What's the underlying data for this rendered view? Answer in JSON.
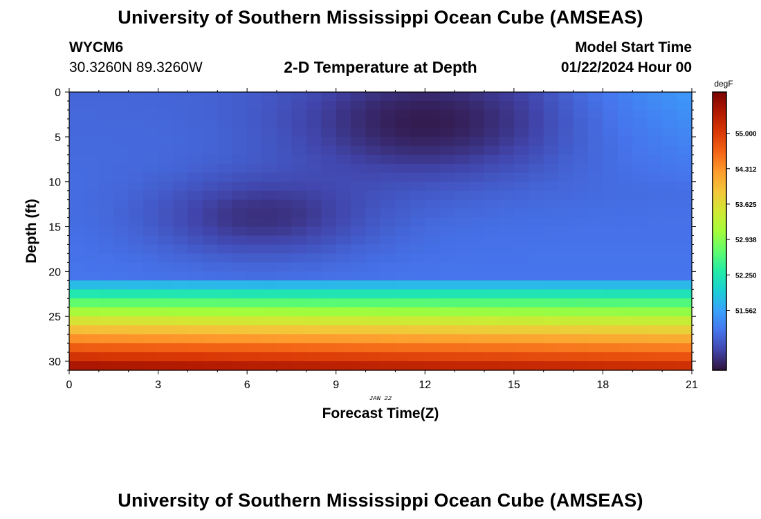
{
  "header": {
    "title": "University of Southern Mississippi Ocean Cube (AMSEAS)",
    "station_id": "WYCM6",
    "coordinates": "30.3260N  89.3260W",
    "subtitle": "2-D Temperature at Depth",
    "start_label": "Model Start Time",
    "start_value": "01/22/2024 Hour 00"
  },
  "footer": {
    "title": "University of Southern Mississippi Ocean Cube (AMSEAS)"
  },
  "chart_data": {
    "type": "heatmap",
    "title": "2-D Temperature at Depth",
    "xlabel": "Forecast Time(Z)",
    "ylabel": "Depth (ft)",
    "date_label": "JAN 22",
    "x_range": [
      0,
      21
    ],
    "y_range": [
      0,
      31
    ],
    "y_inverted": true,
    "x_ticks": [
      0,
      3,
      6,
      9,
      12,
      15,
      18,
      21
    ],
    "y_ticks": [
      0,
      5,
      10,
      15,
      20,
      25,
      30
    ],
    "colorbar": {
      "unit": "degF",
      "range": [
        50.4,
        55.8
      ],
      "tick_labels": [
        "55.000",
        "54.312",
        "53.625",
        "52.938",
        "52.250",
        "51.562"
      ],
      "colors": [
        "#30123b",
        "#4145ab",
        "#4675ed",
        "#39a2fc",
        "#1bcfd4",
        "#24eca6",
        "#61fc6c",
        "#a4fc3b",
        "#d1e834",
        "#f3c63a",
        "#fe9b2d",
        "#f36315",
        "#d93806",
        "#b11901",
        "#7a0403"
      ]
    },
    "depth_profile_description": "Near-uniform cold water (~51.0-51.3 degF) from surface to ~20 ft with a colder core (~50.5 degF) near surface at 10-14Z and around 14 ft at 5-7Z; sharp warming below 21 ft to ~55.5 degF at the bottom (31 ft).",
    "sample_values": [
      {
        "time": 0,
        "depth": 0,
        "temp": 51.1
      },
      {
        "time": 12,
        "depth": 3,
        "temp": 50.5
      },
      {
        "time": 6,
        "depth": 14,
        "temp": 50.6
      },
      {
        "time": 21,
        "depth": 0,
        "temp": 51.7
      },
      {
        "time": 12,
        "depth": 22,
        "temp": 51.9
      },
      {
        "time": 12,
        "depth": 24,
        "temp": 53.2
      },
      {
        "time": 12,
        "depth": 27,
        "temp": 54.6
      },
      {
        "time": 0,
        "depth": 30.5,
        "temp": 55.6
      }
    ]
  }
}
